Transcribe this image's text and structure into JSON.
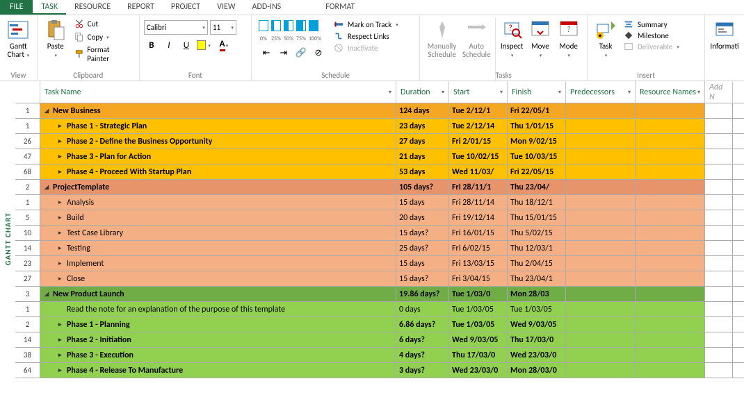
{
  "tabs": {
    "file": "FILE",
    "task": "TASK",
    "resource": "RESOURCE",
    "report": "REPORT",
    "project": "PROJECT",
    "view": "VIEW",
    "addins": "ADD-INS",
    "format": "FORMAT"
  },
  "ribbon": {
    "view": {
      "gantt": "Gantt\nChart",
      "label": "View"
    },
    "clipboard": {
      "paste": "Paste",
      "cut": "Cut",
      "copy": "Copy",
      "painter": "Format Painter",
      "label": "Clipboard"
    },
    "font": {
      "name": "Calibri",
      "size": "11",
      "label": "Font"
    },
    "schedule": {
      "progress": [
        "0%",
        "25%",
        "50%",
        "75%",
        "100%"
      ],
      "mark": "Mark on Track",
      "respect": "Respect Links",
      "inactivate": "Inactivate",
      "label": "Schedule"
    },
    "tasks": {
      "man": "Manually\nSchedule",
      "auto": "Auto\nSchedule",
      "inspect": "Inspect",
      "move": "Move",
      "mode": "Mode",
      "label": "Tasks"
    },
    "insert": {
      "task": "Task",
      "summary": "Summary",
      "milestone": "Milestone",
      "deliverable": "Deliverable",
      "label": "Insert"
    },
    "prop": {
      "info": "Informati",
      "label": ""
    }
  },
  "sidebar": "GANTT CHART",
  "columns": {
    "task": "Task Name",
    "dur": "Duration",
    "start": "Start",
    "finish": "Finish",
    "pred": "Predecessors",
    "res": "Resource Names",
    "add": "Add N"
  },
  "rows": [
    {
      "n": "1",
      "cls": "c-orange-d",
      "ind": 0,
      "exp": "collapse",
      "name": "New Business",
      "dur": "124 days",
      "start": "Tue 2/12/1",
      "fin": "Fri 22/05/1"
    },
    {
      "n": "1",
      "cls": "c-orange",
      "ind": 1,
      "exp": "right",
      "name": "Phase 1 - Strategic Plan",
      "dur": "23 days",
      "start": "Tue 2/12/14",
      "fin": "Thu 1/01/15"
    },
    {
      "n": "26",
      "cls": "c-orange",
      "ind": 1,
      "exp": "right",
      "name": "Phase 2 - Define the Business Opportunity",
      "dur": "27 days",
      "start": "Fri 2/01/15",
      "fin": "Mon 9/02/15"
    },
    {
      "n": "47",
      "cls": "c-orange",
      "ind": 1,
      "exp": "right",
      "name": "Phase 3 - Plan for Action",
      "dur": "21 days",
      "start": "Tue 10/02/15",
      "fin": "Tue 10/03/15"
    },
    {
      "n": "68",
      "cls": "c-orange",
      "ind": 1,
      "exp": "right",
      "name": "Phase 4 - Proceed With Startup Plan",
      "dur": "53 days",
      "start": "Wed 11/03/",
      "fin": "Fri 22/05/15"
    },
    {
      "n": "2",
      "cls": "c-salmon-d",
      "ind": 0,
      "exp": "collapse",
      "name": "ProjectTemplate",
      "dur": "105 days?",
      "start": "Fri 28/11/1",
      "fin": "Thu 23/04/"
    },
    {
      "n": "1",
      "cls": "c-salmon",
      "ind": 1,
      "exp": "right",
      "name": "Analysis",
      "dur": "15 days",
      "start": "Fri 28/11/14",
      "fin": "Thu 18/12/1"
    },
    {
      "n": "5",
      "cls": "c-salmon",
      "ind": 1,
      "exp": "right",
      "name": "Build",
      "dur": "20 days",
      "start": "Fri 19/12/14",
      "fin": "Thu 15/01/15"
    },
    {
      "n": "10",
      "cls": "c-salmon",
      "ind": 1,
      "exp": "right",
      "name": "Test Case Library",
      "dur": "15 days?",
      "start": "Fri 16/01/15",
      "fin": "Thu 5/02/15"
    },
    {
      "n": "14",
      "cls": "c-salmon",
      "ind": 1,
      "exp": "right",
      "name": "Testing",
      "dur": "25 days?",
      "start": "Fri 6/02/15",
      "fin": "Thu 12/03/1"
    },
    {
      "n": "23",
      "cls": "c-salmon",
      "ind": 1,
      "exp": "right",
      "name": "Implement",
      "dur": "15 days",
      "start": "Fri 13/03/15",
      "fin": "Thu 2/04/15"
    },
    {
      "n": "27",
      "cls": "c-salmon",
      "ind": 1,
      "exp": "right",
      "name": "Close",
      "dur": "15 days?",
      "start": "Fri 3/04/15",
      "fin": "Thu 23/04/1"
    },
    {
      "n": "3",
      "cls": "c-green-d",
      "ind": 0,
      "exp": "collapse",
      "name": "New Product Launch",
      "dur": "19.86 days?",
      "start": "Tue 1/03/0",
      "fin": "Mon 28/03"
    },
    {
      "n": "1",
      "cls": "c-green-n",
      "ind": 2,
      "exp": "",
      "name": "Read the note for an explanation of the purpose of this template",
      "dur": "0 days",
      "start": "Tue 1/03/05",
      "fin": "Tue 1/03/05"
    },
    {
      "n": "2",
      "cls": "c-green",
      "ind": 1,
      "exp": "right",
      "name": "Phase 1 - Planning",
      "dur": "6.86 days?",
      "start": "Tue 1/03/05",
      "fin": "Wed 9/03/05"
    },
    {
      "n": "14",
      "cls": "c-green",
      "ind": 1,
      "exp": "right",
      "name": "Phase 2 - Initiation",
      "dur": "6 days?",
      "start": "Wed 9/03/05",
      "fin": "Thu 17/03/0"
    },
    {
      "n": "38",
      "cls": "c-green",
      "ind": 1,
      "exp": "right",
      "name": "Phase 3 - Execution",
      "dur": "4 days?",
      "start": "Thu 17/03/0",
      "fin": "Wed 23/03/0"
    },
    {
      "n": "64",
      "cls": "c-green",
      "ind": 1,
      "exp": "right",
      "name": "Phase 4 - Release To Manufacture",
      "dur": "3 days?",
      "start": "Wed 23/03/0",
      "fin": "Mon 28/03/0"
    }
  ]
}
